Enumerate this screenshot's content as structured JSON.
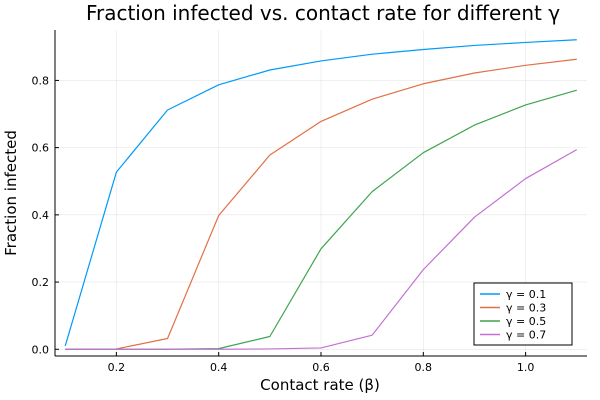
{
  "chart_data": {
    "type": "line",
    "title": "Fraction infected vs. contact rate for different γ",
    "xlabel": "Contact rate (β)",
    "ylabel": "Fraction infected",
    "xlim": [
      0.08,
      1.12
    ],
    "ylim": [
      -0.02,
      0.95
    ],
    "xticks": [
      0.2,
      0.4,
      0.6,
      0.8,
      1.0
    ],
    "xtick_labels": [
      "0.2",
      "0.4",
      "0.6",
      "0.8",
      "1.0"
    ],
    "yticks": [
      0.0,
      0.2,
      0.4,
      0.6,
      0.8
    ],
    "ytick_labels": [
      "0.0",
      "0.2",
      "0.4",
      "0.6",
      "0.8"
    ],
    "grid": true,
    "legend_position": "bottom-right",
    "x": [
      0.1,
      0.2,
      0.3,
      0.4,
      0.5,
      0.6,
      0.7,
      0.8,
      0.9,
      1.0,
      1.1
    ],
    "series": [
      {
        "name": "γ = 0.1",
        "color": "#009af9",
        "values": [
          0.01,
          0.527,
          0.712,
          0.787,
          0.831,
          0.858,
          0.878,
          0.892,
          0.904,
          0.913,
          0.921
        ]
      },
      {
        "name": "γ = 0.3",
        "color": "#e26f46",
        "values": [
          0.0,
          0.001,
          0.032,
          0.398,
          0.578,
          0.678,
          0.744,
          0.79,
          0.822,
          0.845,
          0.863
        ]
      },
      {
        "name": "γ = 0.5",
        "color": "#3da44d",
        "values": [
          0.0,
          0.0,
          0.0,
          0.002,
          0.038,
          0.299,
          0.469,
          0.585,
          0.667,
          0.727,
          0.771
        ]
      },
      {
        "name": "γ = 0.7",
        "color": "#c271d2",
        "values": [
          0.0,
          0.0,
          0.0,
          0.0,
          0.001,
          0.004,
          0.042,
          0.237,
          0.393,
          0.508,
          0.594
        ]
      }
    ]
  }
}
